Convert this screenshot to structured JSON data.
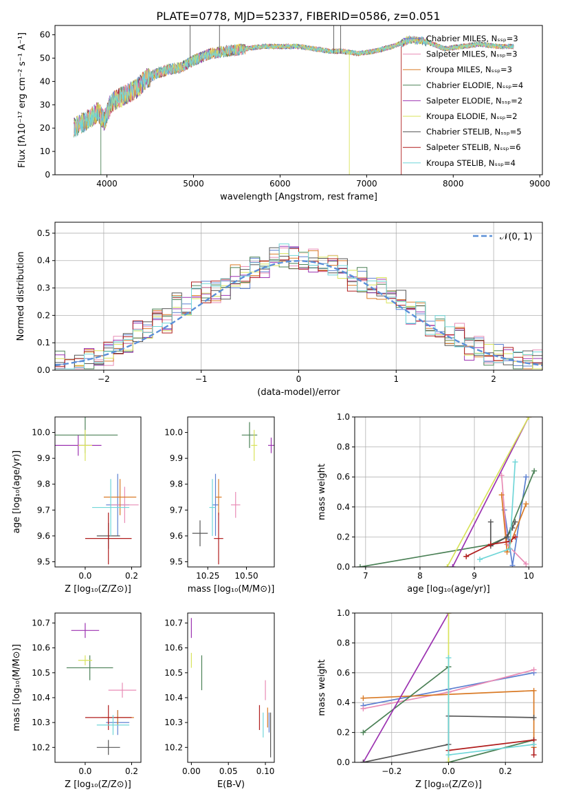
{
  "figure": {
    "title": "PLATE=0778, MJD=52337, FIBERID=0586, z=0.051"
  },
  "chart_data": [
    {
      "type": "line",
      "panel": "spectrum",
      "xlabel": "wavelength [Angstrom, rest frame]",
      "ylabel": "Flux [fλ10⁻¹⁷ erg cm⁻² s⁻¹ A⁻¹]",
      "xlim": [
        3400,
        9030
      ],
      "ylim": [
        0,
        64
      ],
      "xticks": [
        "4000",
        "5000",
        "6000",
        "7000",
        "8000",
        "9000"
      ],
      "yticks": [
        "0",
        "10",
        "20",
        "30",
        "40",
        "50",
        "60"
      ],
      "legend_position": "top-right",
      "continuum_x": [
        3620,
        3700,
        3800,
        3900,
        3970,
        4050,
        4150,
        4250,
        4350,
        4450,
        4550,
        4700,
        4860,
        5000,
        5200,
        5400,
        5600,
        5800,
        6000,
        6200,
        6400,
        6560,
        6700,
        6900,
        7100,
        7300,
        7500,
        7700,
        7900,
        8100,
        8300,
        8500,
        8700
      ],
      "continuum_y": [
        20,
        22,
        24,
        27,
        23,
        31,
        33,
        35,
        37,
        41,
        43,
        45,
        46,
        49,
        52,
        53,
        54,
        55,
        55,
        55,
        54,
        53,
        53,
        52,
        53,
        55,
        58,
        57,
        54,
        55,
        56,
        55,
        55
      ],
      "series": [
        {
          "name": "Chabrier MILES, Nₛₛₚ=3",
          "color": "#5b7fd0"
        },
        {
          "name": "Salpeter MILES, Nₛₛₚ=3",
          "color": "#e88bb5"
        },
        {
          "name": "Kroupa MILES, Nₛₛₚ=3",
          "color": "#d97a25"
        },
        {
          "name": "Chabrier ELODIE, Nₛₛₚ=4",
          "color": "#4a8055"
        },
        {
          "name": "Salpeter ELODIE, Nₛₛₚ=2",
          "color": "#9b31b0"
        },
        {
          "name": "Kroupa ELODIE, Nₛₛₚ=2",
          "color": "#d8e35a"
        },
        {
          "name": "Chabrier STELIB, Nₛₛₚ=5",
          "color": "#555555"
        },
        {
          "name": "Salpeter STELIB, Nₛₛₚ=6",
          "color": "#b01c1c"
        },
        {
          "name": "Kroupa STELIB, Nₛₛₚ=4",
          "color": "#6fd6d8"
        }
      ]
    },
    {
      "type": "line",
      "panel": "residual histogram",
      "xlabel": "(data-model)/error",
      "ylabel": "Normed distribution",
      "xlim": [
        -2.5,
        2.5
      ],
      "ylim": [
        0,
        0.54
      ],
      "xticks": [
        "−2",
        "−1",
        "0",
        "1",
        "2"
      ],
      "yticks": [
        "0.0",
        "0.1",
        "0.2",
        "0.3",
        "0.4",
        "0.5"
      ],
      "grid": true,
      "legend_position": "top-right",
      "reference": {
        "name": "𝒩(0, 1)",
        "color": "#5b8fd8"
      },
      "bin_centers": [
        -2.4,
        -2.2,
        -2.0,
        -1.8,
        -1.6,
        -1.4,
        -1.2,
        -1.0,
        -0.8,
        -0.6,
        -0.4,
        -0.2,
        0.0,
        0.2,
        0.4,
        0.6,
        0.8,
        1.0,
        1.2,
        1.4,
        1.6,
        1.8,
        2.0,
        2.2,
        2.4
      ],
      "approx_values": [
        0.03,
        0.04,
        0.06,
        0.09,
        0.14,
        0.18,
        0.24,
        0.28,
        0.29,
        0.34,
        0.38,
        0.42,
        0.41,
        0.4,
        0.38,
        0.33,
        0.3,
        0.26,
        0.21,
        0.16,
        0.13,
        0.08,
        0.06,
        0.04,
        0.03
      ]
    },
    {
      "type": "scatter",
      "panel": "age vs Z",
      "xlabel": "Z [log₁₀(Z/Z⊙)]",
      "ylabel": "age  [log₁₀(age/yr)]",
      "xlim": [
        -0.13,
        0.24
      ],
      "ylim": [
        9.48,
        10.06
      ],
      "xticks": [
        "0.0",
        "0.2"
      ],
      "yticks": [
        "9.5",
        "9.6",
        "9.7",
        "9.8",
        "9.9",
        "10.0"
      ],
      "points": [
        {
          "model": "Chabrier MILES",
          "x": 0.14,
          "y": 9.72,
          "xerr": 0.05,
          "yerr": 0.12
        },
        {
          "model": "Salpeter MILES",
          "x": 0.17,
          "y": 9.72,
          "xerr": 0.06,
          "yerr": 0.07
        },
        {
          "model": "Kroupa MILES",
          "x": 0.15,
          "y": 9.75,
          "xerr": 0.07,
          "yerr": 0.07
        },
        {
          "model": "Chabrier ELODIE",
          "x": 0.0,
          "y": 9.99,
          "xerr": 0.14,
          "yerr": 0.07
        },
        {
          "model": "Salpeter ELODIE",
          "x": -0.03,
          "y": 9.95,
          "xerr": 0.1,
          "yerr": 0.04
        },
        {
          "model": "Kroupa ELODIE",
          "x": 0.0,
          "y": 9.95,
          "xerr": 0.03,
          "yerr": 0.06
        },
        {
          "model": "Chabrier STELIB",
          "x": 0.1,
          "y": 9.6,
          "xerr": 0.05,
          "yerr": 0.05
        },
        {
          "model": "Salpeter STELIB",
          "x": 0.1,
          "y": 9.59,
          "xerr": 0.1,
          "yerr": 0.1
        },
        {
          "model": "Kroupa STELIB",
          "x": 0.11,
          "y": 9.71,
          "xerr": 0.08,
          "yerr": 0.11
        }
      ]
    },
    {
      "type": "scatter",
      "panel": "age vs mass",
      "xlabel": "mass [log₁₀(M/M⊙)]",
      "xlim": [
        10.12,
        10.68
      ],
      "ylim": [
        9.48,
        10.06
      ],
      "xticks": [
        "10.25",
        "10.50"
      ],
      "yticks": [
        "9.5",
        "9.6",
        "9.7",
        "9.8",
        "9.9",
        "10.0"
      ],
      "points": [
        {
          "model": "Chabrier MILES",
          "x": 10.3,
          "y": 9.72,
          "xerr": 0.02,
          "yerr": 0.12
        },
        {
          "model": "Salpeter MILES",
          "x": 10.43,
          "y": 9.72,
          "xerr": 0.03,
          "yerr": 0.05
        },
        {
          "model": "Kroupa MILES",
          "x": 10.32,
          "y": 9.75,
          "xerr": 0.02,
          "yerr": 0.07
        },
        {
          "model": "Chabrier ELODIE",
          "x": 10.52,
          "y": 9.99,
          "xerr": 0.05,
          "yerr": 0.05
        },
        {
          "model": "Salpeter ELODIE",
          "x": 10.66,
          "y": 9.95,
          "xerr": 0.02,
          "yerr": 0.03
        },
        {
          "model": "Kroupa ELODIE",
          "x": 10.55,
          "y": 9.95,
          "xerr": 0.02,
          "yerr": 0.06
        },
        {
          "model": "Chabrier STELIB",
          "x": 10.2,
          "y": 9.61,
          "xerr": 0.05,
          "yerr": 0.05
        },
        {
          "model": "Salpeter STELIB",
          "x": 10.32,
          "y": 9.59,
          "xerr": 0.03,
          "yerr": 0.1
        },
        {
          "model": "Kroupa STELIB",
          "x": 10.28,
          "y": 9.71,
          "xerr": 0.02,
          "yerr": 0.11
        }
      ]
    },
    {
      "type": "line",
      "panel": "mass weight vs age",
      "xlabel": "age  [log₁₀(age/yr)]",
      "ylabel": "mass weight",
      "xlim": [
        6.8,
        10.25
      ],
      "ylim": [
        0,
        1
      ],
      "xticks": [
        "7",
        "8",
        "9",
        "10"
      ],
      "yticks": [
        "0.0",
        "0.2",
        "0.4",
        "0.6",
        "0.8",
        "1.0"
      ],
      "grid": true,
      "series": [
        {
          "model": "Chabrier MILES",
          "x": [
            9.55,
            9.7,
            9.95
          ],
          "y": [
            0.38,
            0.01,
            0.6
          ]
        },
        {
          "model": "Salpeter MILES",
          "x": [
            9.5,
            9.6,
            9.95
          ],
          "y": [
            0.61,
            0.15,
            0.02
          ]
        },
        {
          "model": "Kroupa MILES",
          "x": [
            9.5,
            9.6,
            9.95
          ],
          "y": [
            0.48,
            0.1,
            0.42
          ]
        },
        {
          "model": "Chabrier ELODIE",
          "x": [
            6.9,
            9.3,
            9.6,
            10.1
          ],
          "y": [
            0.0,
            0.15,
            0.2,
            0.64
          ]
        },
        {
          "model": "Salpeter ELODIE",
          "x": [
            8.6,
            10.0
          ],
          "y": [
            0.0,
            1.0
          ]
        },
        {
          "model": "Kroupa ELODIE",
          "x": [
            8.5,
            10.0
          ],
          "y": [
            0.0,
            1.0
          ]
        },
        {
          "model": "Chabrier STELIB",
          "x": [
            9.3,
            9.3,
            9.6,
            9.7,
            9.75
          ],
          "y": [
            0.3,
            0.14,
            0.2,
            0.26,
            0.3
          ]
        },
        {
          "model": "Salpeter STELIB",
          "x": [
            8.85,
            9.3,
            9.65,
            9.75
          ],
          "y": [
            0.07,
            0.15,
            0.17,
            0.2
          ]
        },
        {
          "model": "Kroupa STELIB",
          "x": [
            9.1,
            9.65,
            9.75
          ],
          "y": [
            0.05,
            0.12,
            0.7
          ]
        }
      ]
    },
    {
      "type": "scatter",
      "panel": "mass vs Z",
      "xlabel": "Z [log₁₀(Z/Z⊙)]",
      "ylabel": "mass [log₁₀(M/M⊙)]",
      "xlim": [
        -0.13,
        0.24
      ],
      "ylim": [
        10.14,
        10.74
      ],
      "xticks": [
        "0.0",
        "0.2"
      ],
      "yticks": [
        "10.2",
        "10.3",
        "10.4",
        "10.5",
        "10.6",
        "10.7"
      ],
      "points": [
        {
          "model": "Chabrier MILES",
          "x": 0.14,
          "y": 10.3,
          "xerr": 0.05,
          "yerr": 0.05
        },
        {
          "model": "Salpeter MILES",
          "x": 0.16,
          "y": 10.43,
          "xerr": 0.06,
          "yerr": 0.03
        },
        {
          "model": "Kroupa MILES",
          "x": 0.14,
          "y": 10.32,
          "xerr": 0.07,
          "yerr": 0.03
        },
        {
          "model": "Chabrier ELODIE",
          "x": 0.02,
          "y": 10.52,
          "xerr": 0.1,
          "yerr": 0.05
        },
        {
          "model": "Salpeter ELODIE",
          "x": 0.0,
          "y": 10.67,
          "xerr": 0.06,
          "yerr": 0.03
        },
        {
          "model": "Kroupa ELODIE",
          "x": 0.0,
          "y": 10.55,
          "xerr": 0.03,
          "yerr": 0.02
        },
        {
          "model": "Chabrier STELIB",
          "x": 0.1,
          "y": 10.2,
          "xerr": 0.05,
          "yerr": 0.03
        },
        {
          "model": "Salpeter STELIB",
          "x": 0.1,
          "y": 10.32,
          "xerr": 0.1,
          "yerr": 0.05
        },
        {
          "model": "Kroupa STELIB",
          "x": 0.12,
          "y": 10.29,
          "xerr": 0.07,
          "yerr": 0.04
        }
      ]
    },
    {
      "type": "scatter",
      "panel": "mass vs E(B-V)",
      "xlabel": "E(B-V)",
      "xlim": [
        -0.005,
        0.112
      ],
      "ylim": [
        10.14,
        10.74
      ],
      "xticks": [
        "0.00",
        "0.05",
        "0.10"
      ],
      "yticks": [
        "10.2",
        "10.3",
        "10.4",
        "10.5",
        "10.6",
        "10.7"
      ],
      "points": [
        {
          "model": "Chabrier MILES",
          "x": 0.105,
          "y": 10.3,
          "yerr": 0.04
        },
        {
          "model": "Salpeter MILES",
          "x": 0.1,
          "y": 10.43,
          "yerr": 0.04
        },
        {
          "model": "Kroupa MILES",
          "x": 0.103,
          "y": 10.32,
          "yerr": 0.04
        },
        {
          "model": "Chabrier ELODIE",
          "x": 0.014,
          "y": 10.5,
          "yerr": 0.07
        },
        {
          "model": "Salpeter ELODIE",
          "x": 0.0,
          "y": 10.68,
          "yerr": 0.04
        },
        {
          "model": "Kroupa ELODIE",
          "x": 0.0,
          "y": 10.55,
          "yerr": 0.03
        },
        {
          "model": "Chabrier STELIB",
          "x": 0.107,
          "y": 10.25,
          "yerr": 0.09
        },
        {
          "model": "Salpeter STELIB",
          "x": 0.092,
          "y": 10.32,
          "yerr": 0.05
        },
        {
          "model": "Kroupa STELIB",
          "x": 0.097,
          "y": 10.29,
          "yerr": 0.05
        }
      ]
    },
    {
      "type": "line",
      "panel": "mass weight vs Z",
      "xlabel": "Z [log₁₀(Z/Z⊙)]",
      "ylabel": "mass weight",
      "xlim": [
        -0.33,
        0.33
      ],
      "ylim": [
        0,
        1
      ],
      "xticks": [
        "−0.2",
        "0.0",
        "0.2"
      ],
      "yticks": [
        "0.0",
        "0.2",
        "0.4",
        "0.6",
        "0.8",
        "1.0"
      ],
      "grid": true,
      "series": [
        {
          "model": "Chabrier MILES",
          "x": [
            -0.3,
            0.0,
            0.3
          ],
          "y": [
            0.38,
            0.49,
            0.6
          ]
        },
        {
          "model": "Salpeter MILES",
          "x": [
            -0.3,
            0.0,
            0.3
          ],
          "y": [
            0.36,
            0.47,
            0.62
          ]
        },
        {
          "model": "Kroupa MILES",
          "x": [
            -0.3,
            0.3,
            0.3
          ],
          "y": [
            0.43,
            0.48,
            0.1
          ]
        },
        {
          "model": "Chabrier ELODIE",
          "x": [
            -0.3,
            0.0,
            0.0,
            0.3
          ],
          "y": [
            0.2,
            0.64,
            0.0,
            0.15
          ]
        },
        {
          "model": "Salpeter ELODIE",
          "x": [
            -0.3,
            0.0
          ],
          "y": [
            0.0,
            1.0
          ]
        },
        {
          "model": "Kroupa ELODIE",
          "x": [
            0.0,
            0.0
          ],
          "y": [
            0.0,
            1.0
          ]
        },
        {
          "model": "Chabrier STELIB",
          "x": [
            -0.3,
            0.0,
            0.0,
            0.3
          ],
          "y": [
            0.0,
            0.12,
            0.31,
            0.3
          ]
        },
        {
          "model": "Salpeter STELIB",
          "x": [
            0.0,
            0.3,
            0.3
          ],
          "y": [
            0.08,
            0.15,
            0.05
          ]
        },
        {
          "model": "Kroupa STELIB",
          "x": [
            0.0,
            0.0,
            0.3
          ],
          "y": [
            0.7,
            0.05,
            0.12
          ]
        }
      ]
    }
  ]
}
